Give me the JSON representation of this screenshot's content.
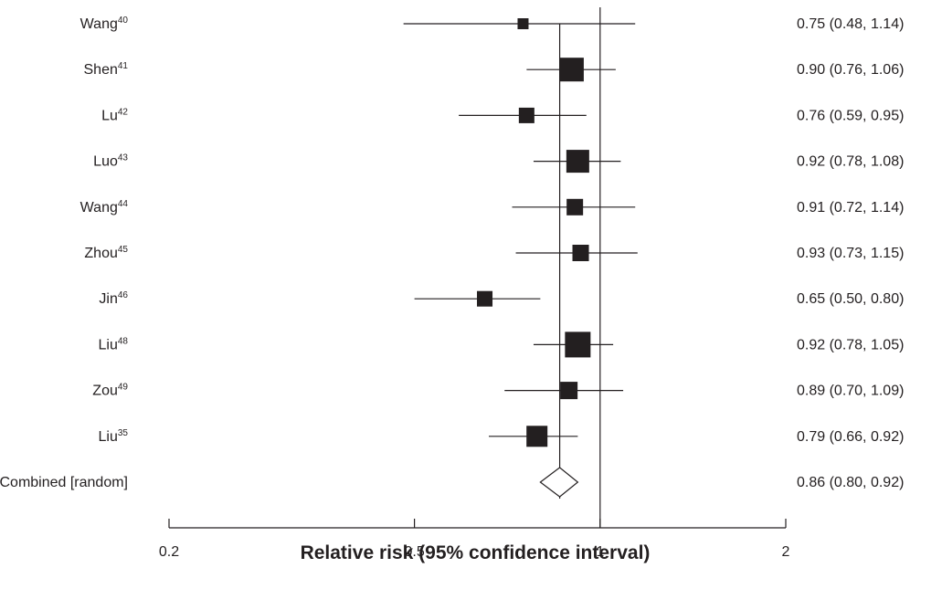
{
  "chart_data": {
    "type": "forest",
    "title": "",
    "xlabel": "Relative risk (95% confidence interval)",
    "x_scale": "log",
    "xlim": [
      0.2,
      2
    ],
    "x_ticks": [
      0.2,
      0.5,
      1,
      2
    ],
    "x_tick_labels": [
      "0.2",
      "0.5",
      "1",
      "2"
    ],
    "reference_line": 1,
    "pooled_line": 0.86,
    "studies": [
      {
        "name": "Wang",
        "ref": "40",
        "rr": 0.75,
        "lower": 0.48,
        "upper": 1.14,
        "ci_text": "0.75 (0.48, 1.14)",
        "weight": 0.3
      },
      {
        "name": "Shen",
        "ref": "41",
        "rr": 0.9,
        "lower": 0.76,
        "upper": 1.06,
        "ci_text": "0.90 (0.76, 1.06)",
        "weight": 1.0
      },
      {
        "name": "Lu",
        "ref": "42",
        "rr": 0.76,
        "lower": 0.59,
        "upper": 0.95,
        "ci_text": "0.76 (0.59, 0.95)",
        "weight": 0.55
      },
      {
        "name": "Luo",
        "ref": "43",
        "rr": 0.92,
        "lower": 0.78,
        "upper": 1.08,
        "ci_text": "0.92 (0.78, 1.08)",
        "weight": 0.95
      },
      {
        "name": "Wang",
        "ref": "44",
        "rr": 0.91,
        "lower": 0.72,
        "upper": 1.14,
        "ci_text": "0.91 (0.72, 1.14)",
        "weight": 0.6
      },
      {
        "name": "Zhou",
        "ref": "45",
        "rr": 0.93,
        "lower": 0.73,
        "upper": 1.15,
        "ci_text": "0.93 (0.73, 1.15)",
        "weight": 0.6
      },
      {
        "name": "Jin",
        "ref": "46",
        "rr": 0.65,
        "lower": 0.5,
        "upper": 0.8,
        "ci_text": "0.65 (0.50, 0.80)",
        "weight": 0.55
      },
      {
        "name": "Liu",
        "ref": "48",
        "rr": 0.92,
        "lower": 0.78,
        "upper": 1.05,
        "ci_text": "0.92 (0.78, 1.05)",
        "weight": 1.1
      },
      {
        "name": "Zou",
        "ref": "49",
        "rr": 0.89,
        "lower": 0.7,
        "upper": 1.09,
        "ci_text": "0.89 (0.70, 1.09)",
        "weight": 0.65
      },
      {
        "name": "Liu",
        "ref": "35",
        "rr": 0.79,
        "lower": 0.66,
        "upper": 0.92,
        "ci_text": "0.79 (0.66, 0.92)",
        "weight": 0.85
      }
    ],
    "combined": {
      "name": "Combined [random]",
      "rr": 0.86,
      "lower": 0.8,
      "upper": 0.92,
      "ci_text": "0.86 (0.80, 0.92)"
    },
    "colors": {
      "marker": "#231f20",
      "line": "#231f20"
    }
  }
}
